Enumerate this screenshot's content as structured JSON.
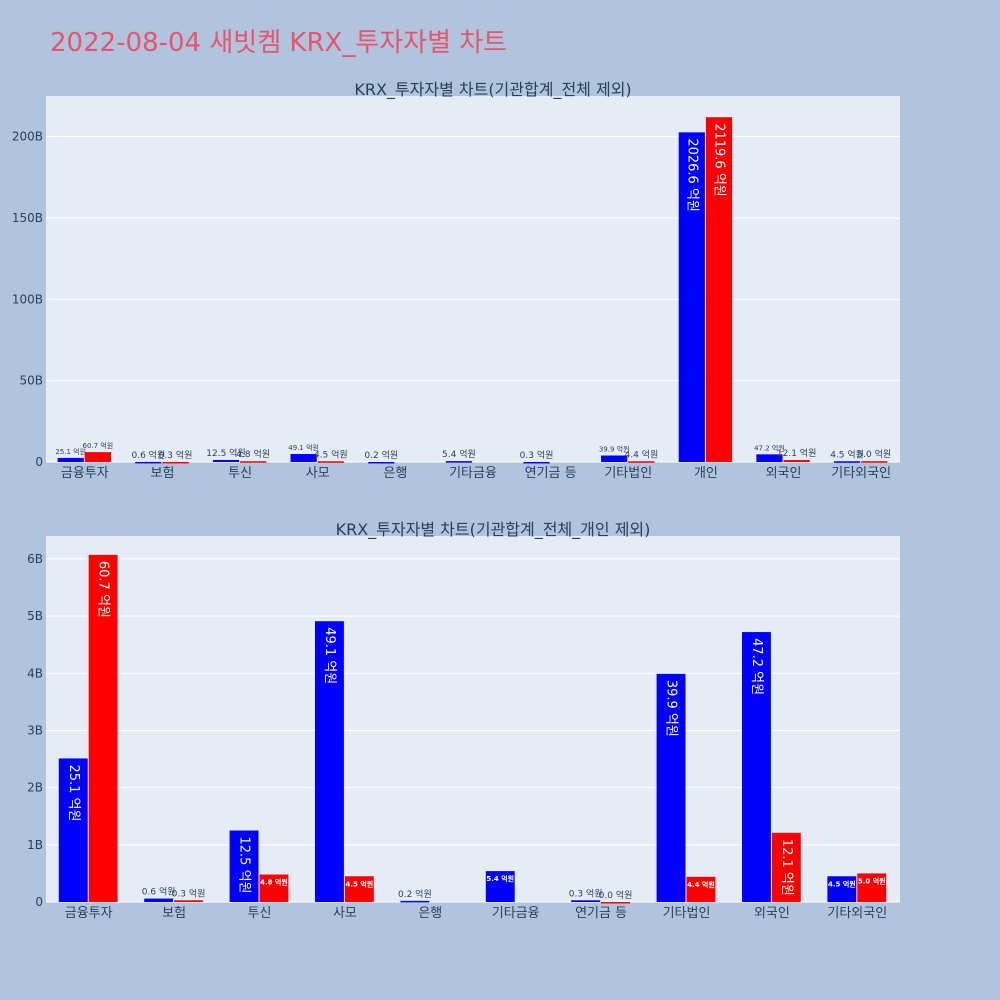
{
  "page": {
    "title": "2022-08-04 새빗켐 KRX_투자자별 차트"
  },
  "colors": {
    "page_bg": "#b0c4de",
    "plot_bg": "#e5ecf6",
    "title": "#e8556b",
    "text": "#2a3f5f",
    "buy": "#0000ff",
    "sell": "#ff0000"
  },
  "chart_data": [
    {
      "type": "bar",
      "title": "KRX_투자자별 차트(기관합계_전체 제외)",
      "categories": [
        "금융투자",
        "보험",
        "투신",
        "사모",
        "은행",
        "기타금융",
        "연기금 등",
        "기타법인",
        "개인",
        "외국인",
        "기타외국인"
      ],
      "ylim": [
        0,
        225
      ],
      "yticks": [
        0,
        50,
        100,
        150,
        200
      ],
      "ytick_labels": [
        "0",
        "50B",
        "100B",
        "150B",
        "200B"
      ],
      "grid": true,
      "series": [
        {
          "color": "#0000ff",
          "values": [
            2.51,
            0.06,
            1.25,
            4.91,
            0.02,
            0.54,
            0.03,
            3.99,
            202.66,
            4.72,
            0.45
          ],
          "labels": [
            "25.1 억원",
            "0.6 억원",
            "12.5 억원",
            "49.1 억원",
            "0.2 억원",
            "5.4 억원",
            "0.3 억원",
            "39.9 억원",
            "2026.6 억원",
            "47.2 억원",
            "4.5 억원"
          ]
        },
        {
          "color": "#ff0000",
          "values": [
            6.07,
            0.03,
            0.48,
            0.45,
            null,
            null,
            null,
            0.44,
            211.96,
            1.21,
            0.5
          ],
          "labels": [
            "60.7 억원",
            "0.3 억원",
            "4.8 억원",
            "4.5 억원",
            "",
            "",
            "",
            "4.4 억원",
            "2119.6 억원",
            "12.1 억원",
            "5.0 억원"
          ]
        }
      ]
    },
    {
      "type": "bar",
      "title": "KRX_투자자별 차트(기관합계_전체_개인 제외)",
      "categories": [
        "금융투자",
        "보험",
        "투신",
        "사모",
        "은행",
        "기타금융",
        "연기금 등",
        "기타법인",
        "외국인",
        "기타외국인"
      ],
      "ylim": [
        0,
        6.4
      ],
      "yticks": [
        0,
        1,
        2,
        3,
        4,
        5,
        6
      ],
      "ytick_labels": [
        "0",
        "1B",
        "2B",
        "3B",
        "4B",
        "5B",
        "6B"
      ],
      "grid": true,
      "series": [
        {
          "color": "#0000ff",
          "values": [
            2.51,
            0.06,
            1.25,
            4.91,
            0.02,
            0.54,
            0.03,
            3.99,
            4.72,
            0.45
          ],
          "labels": [
            "25.1 억원",
            "0.6 억원",
            "12.5 억원",
            "49.1 억원",
            "0.2 억원",
            "5.4 억원",
            "0.3 억원",
            "39.9 억원",
            "47.2 억원",
            "4.5 억원"
          ]
        },
        {
          "color": "#ff0000",
          "values": [
            6.07,
            0.03,
            0.48,
            0.45,
            null,
            null,
            0.0,
            0.44,
            1.21,
            0.5
          ],
          "labels": [
            "60.7 억원",
            "0.3 억원",
            "4.8 억원",
            "4.5 억원",
            "",
            "",
            "0.0 억원",
            "4.4 억원",
            "12.1 억원",
            "5.0 억원"
          ]
        }
      ]
    }
  ]
}
